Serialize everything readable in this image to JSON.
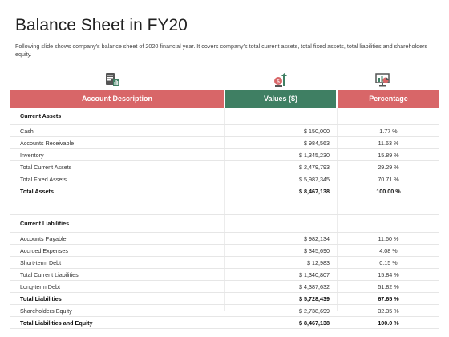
{
  "title": "Balance Sheet in FY20",
  "subtitle": "Following slide shows company's balance sheet of 2020 financial year. It covers company's total current assets, total fixed assets, total liabilities and shareholders equity.",
  "header": {
    "description": "Account Description",
    "values": "Values ($)",
    "percentage": "Percentage"
  },
  "icons": [
    "document-chart-icon",
    "money-growth-icon",
    "presentation-chart-icon"
  ],
  "rows": [
    {
      "type": "section",
      "desc": "Current Assets"
    },
    {
      "type": "item",
      "desc": "Cash",
      "value": "$ 150,000",
      "pct": "1.77 %"
    },
    {
      "type": "item",
      "desc": "Accounts Receivable",
      "value": "$ 984,563",
      "pct": "11.63 %"
    },
    {
      "type": "item",
      "desc": "Inventory",
      "value": "$ 1,345,230",
      "pct": "15.89 %"
    },
    {
      "type": "item",
      "desc": "Total Current Assets",
      "value": "$ 2,479,793",
      "pct": "29.29 %"
    },
    {
      "type": "item",
      "desc": "Total Fixed Assets",
      "value": "$ 5,987,345",
      "pct": "70.71 %"
    },
    {
      "type": "bold",
      "desc": "Total Assets",
      "value": "$ 8,467,138",
      "pct": "100.00 %"
    },
    {
      "type": "gap"
    },
    {
      "type": "section",
      "desc": "Current Liabilities"
    },
    {
      "type": "item",
      "desc": "Accounts Payable",
      "value": "$ 982,134",
      "pct": "11.60 %"
    },
    {
      "type": "item",
      "desc": "Accrued Expenses",
      "value": "$ 345,690",
      "pct": "4.08 %"
    },
    {
      "type": "item",
      "desc": "Short-term Debt",
      "value": "$ 12,983",
      "pct": "0.15 %"
    },
    {
      "type": "item",
      "desc": "Total Current Liabilities",
      "value": "$ 1,340,807",
      "pct": "15.84 %"
    },
    {
      "type": "item",
      "desc": "Long-term Debt",
      "value": "$ 4,387,632",
      "pct": "51.82 %"
    },
    {
      "type": "bold",
      "desc": "Total Liabilities",
      "value": "$ 5,728,439",
      "pct": "67.65 %"
    },
    {
      "type": "item",
      "desc": "Shareholders Equity",
      "value": "$ 2,738,699",
      "pct": "32.35 %"
    },
    {
      "type": "bold",
      "desc": "Total Liabilities and Equity",
      "value": "$ 8,467,138",
      "pct": "100.0 %"
    }
  ],
  "colors": {
    "header_red": "#d86668",
    "header_green": "#3f7f63"
  }
}
